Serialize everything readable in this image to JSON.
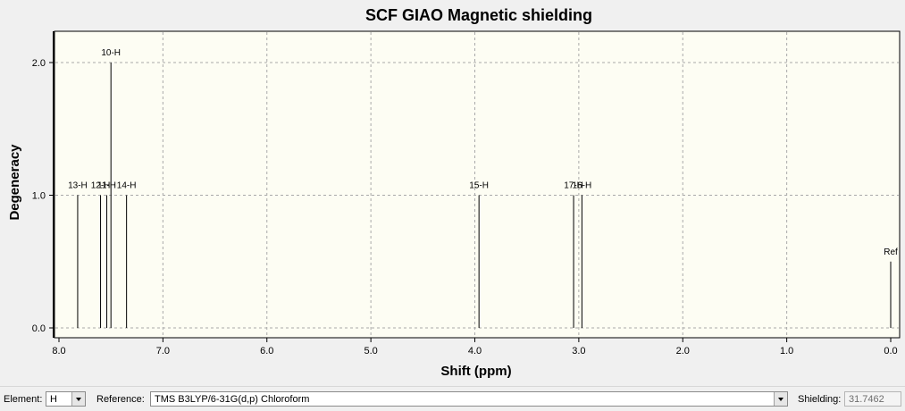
{
  "chart_data": {
    "type": "bar",
    "title": "SCF GIAO Magnetic shielding",
    "xlabel": "Shift (ppm)",
    "ylabel": "Degeneracy",
    "xlim": [
      8.0,
      0.0
    ],
    "ylim": [
      0.0,
      2.2
    ],
    "x_inverted": true,
    "grid": true,
    "xticks": [
      "8.0",
      "7.0",
      "6.0",
      "5.0",
      "4.0",
      "3.0",
      "2.0",
      "1.0",
      "0.0"
    ],
    "yticks": [
      "0.0",
      "1.0",
      "2.0"
    ],
    "peaks": [
      {
        "label": "13-H",
        "x": 7.82,
        "y": 1.0
      },
      {
        "label": "12-H",
        "x": 7.6,
        "y": 1.0
      },
      {
        "label": "11-H",
        "x": 7.54,
        "y": 1.0
      },
      {
        "label": "10-H",
        "x": 7.5,
        "y": 2.0
      },
      {
        "label": "14-H",
        "x": 7.35,
        "y": 1.0
      },
      {
        "label": "15-H",
        "x": 3.96,
        "y": 1.0
      },
      {
        "label": "17-H",
        "x": 3.05,
        "y": 1.0
      },
      {
        "label": "16-H",
        "x": 2.97,
        "y": 1.0
      },
      {
        "label": "Ref",
        "x": 0.0,
        "y": 0.5
      }
    ],
    "colors": {
      "plot_bg": "#fdfdf3",
      "line": "#000000",
      "grid": "#a9a9a9"
    }
  },
  "toolbar": {
    "element_label": "Element:",
    "element_value": "H",
    "reference_label": "Reference:",
    "reference_value": "TMS B3LYP/6-31G(d,p) Chloroform",
    "shielding_label": "Shielding:",
    "shielding_value": "31.7462"
  }
}
